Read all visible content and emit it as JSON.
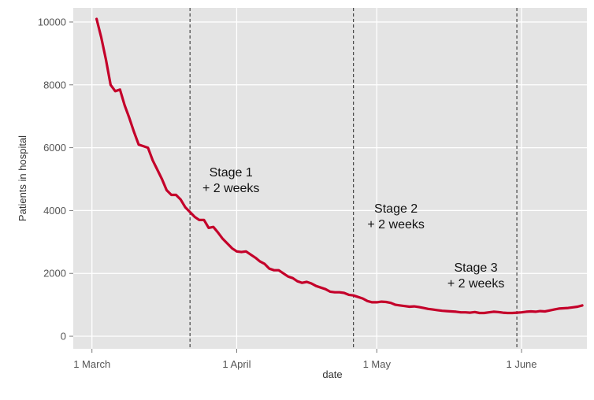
{
  "chart_data": {
    "type": "line",
    "title": "",
    "xlabel": "date",
    "ylabel": "Patients in hospital",
    "xlim": [
      "2020-02-26",
      "2020-06-15"
    ],
    "ylim": [
      -400,
      10450
    ],
    "x_ticks": [
      {
        "date": "2020-03-01",
        "label": "1 March"
      },
      {
        "date": "2020-04-01",
        "label": "1 April"
      },
      {
        "date": "2020-05-01",
        "label": "1 May"
      },
      {
        "date": "2020-06-01",
        "label": "1 June"
      }
    ],
    "y_ticks": [
      {
        "value": 0,
        "label": "0"
      },
      {
        "value": 2000,
        "label": "2000"
      },
      {
        "value": 4000,
        "label": "4000"
      },
      {
        "value": 6000,
        "label": "6000"
      },
      {
        "value": 8000,
        "label": "8000"
      },
      {
        "value": 10000,
        "label": "10000"
      }
    ],
    "grid": true,
    "background": "#e4e4e4",
    "grid_color": "#ffffff",
    "line_color": "#c4002a",
    "vlines": [
      {
        "date": "2020-03-22",
        "label_lines": [
          "Stage 1",
          "+ 2 weeks"
        ]
      },
      {
        "date": "2020-04-26",
        "label_lines": [
          "Stage 2",
          "+ 2 weeks"
        ]
      },
      {
        "date": "2020-05-31",
        "label_lines": [
          "Stage 3",
          "+ 2 weeks"
        ]
      }
    ],
    "series": [
      {
        "points": [
          [
            "2020-03-02",
            10100
          ],
          [
            "2020-03-03",
            9500
          ],
          [
            "2020-03-04",
            8800
          ],
          [
            "2020-03-05",
            8000
          ],
          [
            "2020-03-06",
            7800
          ],
          [
            "2020-03-07",
            7850
          ],
          [
            "2020-03-08",
            7350
          ],
          [
            "2020-03-09",
            6950
          ],
          [
            "2020-03-10",
            6500
          ],
          [
            "2020-03-11",
            6100
          ],
          [
            "2020-03-12",
            6050
          ],
          [
            "2020-03-13",
            6000
          ],
          [
            "2020-03-14",
            5600
          ],
          [
            "2020-03-15",
            5300
          ],
          [
            "2020-03-16",
            5000
          ],
          [
            "2020-03-17",
            4650
          ],
          [
            "2020-03-18",
            4500
          ],
          [
            "2020-03-19",
            4500
          ],
          [
            "2020-03-20",
            4350
          ],
          [
            "2020-03-21",
            4100
          ],
          [
            "2020-03-22",
            3950
          ],
          [
            "2020-03-23",
            3800
          ],
          [
            "2020-03-24",
            3700
          ],
          [
            "2020-03-25",
            3700
          ],
          [
            "2020-03-26",
            3450
          ],
          [
            "2020-03-27",
            3480
          ],
          [
            "2020-03-28",
            3300
          ],
          [
            "2020-03-29",
            3100
          ],
          [
            "2020-03-30",
            2950
          ],
          [
            "2020-03-31",
            2800
          ],
          [
            "2020-04-01",
            2700
          ],
          [
            "2020-04-02",
            2680
          ],
          [
            "2020-04-03",
            2700
          ],
          [
            "2020-04-04",
            2600
          ],
          [
            "2020-04-05",
            2500
          ],
          [
            "2020-04-06",
            2380
          ],
          [
            "2020-04-07",
            2300
          ],
          [
            "2020-04-08",
            2150
          ],
          [
            "2020-04-09",
            2100
          ],
          [
            "2020-04-10",
            2100
          ],
          [
            "2020-04-11",
            2000
          ],
          [
            "2020-04-12",
            1900
          ],
          [
            "2020-04-13",
            1850
          ],
          [
            "2020-04-14",
            1750
          ],
          [
            "2020-04-15",
            1700
          ],
          [
            "2020-04-16",
            1730
          ],
          [
            "2020-04-17",
            1680
          ],
          [
            "2020-04-18",
            1600
          ],
          [
            "2020-04-19",
            1550
          ],
          [
            "2020-04-20",
            1500
          ],
          [
            "2020-04-21",
            1420
          ],
          [
            "2020-04-22",
            1400
          ],
          [
            "2020-04-23",
            1400
          ],
          [
            "2020-04-24",
            1380
          ],
          [
            "2020-04-25",
            1320
          ],
          [
            "2020-04-26",
            1300
          ],
          [
            "2020-04-27",
            1250
          ],
          [
            "2020-04-28",
            1200
          ],
          [
            "2020-04-29",
            1120
          ],
          [
            "2020-04-30",
            1080
          ],
          [
            "2020-05-01",
            1080
          ],
          [
            "2020-05-02",
            1100
          ],
          [
            "2020-05-03",
            1090
          ],
          [
            "2020-05-04",
            1060
          ],
          [
            "2020-05-05",
            1000
          ],
          [
            "2020-05-06",
            980
          ],
          [
            "2020-05-07",
            960
          ],
          [
            "2020-05-08",
            940
          ],
          [
            "2020-05-09",
            950
          ],
          [
            "2020-05-10",
            930
          ],
          [
            "2020-05-11",
            900
          ],
          [
            "2020-05-12",
            870
          ],
          [
            "2020-05-13",
            850
          ],
          [
            "2020-05-14",
            830
          ],
          [
            "2020-05-15",
            810
          ],
          [
            "2020-05-16",
            800
          ],
          [
            "2020-05-17",
            790
          ],
          [
            "2020-05-18",
            780
          ],
          [
            "2020-05-19",
            760
          ],
          [
            "2020-05-20",
            760
          ],
          [
            "2020-05-21",
            750
          ],
          [
            "2020-05-22",
            770
          ],
          [
            "2020-05-23",
            740
          ],
          [
            "2020-05-24",
            740
          ],
          [
            "2020-05-25",
            760
          ],
          [
            "2020-05-26",
            780
          ],
          [
            "2020-05-27",
            770
          ],
          [
            "2020-05-28",
            750
          ],
          [
            "2020-05-29",
            740
          ],
          [
            "2020-05-30",
            740
          ],
          [
            "2020-05-31",
            750
          ],
          [
            "2020-06-01",
            760
          ],
          [
            "2020-06-02",
            780
          ],
          [
            "2020-06-03",
            790
          ],
          [
            "2020-06-04",
            780
          ],
          [
            "2020-06-05",
            800
          ],
          [
            "2020-06-06",
            790
          ],
          [
            "2020-06-07",
            820
          ],
          [
            "2020-06-08",
            850
          ],
          [
            "2020-06-09",
            880
          ],
          [
            "2020-06-10",
            890
          ],
          [
            "2020-06-11",
            900
          ],
          [
            "2020-06-12",
            920
          ],
          [
            "2020-06-13",
            940
          ],
          [
            "2020-06-14",
            980
          ]
        ]
      }
    ]
  }
}
